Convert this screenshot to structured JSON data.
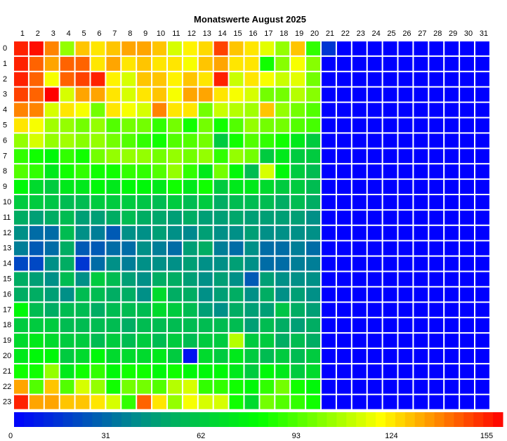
{
  "chart_data": {
    "type": "heatmap",
    "title": "Monatswerte August 2025",
    "x_labels": [
      "1",
      "2",
      "3",
      "4",
      "5",
      "6",
      "7",
      "8",
      "9",
      "10",
      "11",
      "12",
      "13",
      "14",
      "15",
      "16",
      "17",
      "18",
      "19",
      "20",
      "21",
      "22",
      "23",
      "24",
      "25",
      "26",
      "27",
      "28",
      "29",
      "30",
      "31"
    ],
    "y_labels": [
      "0",
      "1",
      "2",
      "3",
      "4",
      "5",
      "6",
      "7",
      "8",
      "9",
      "10",
      "11",
      "12",
      "13",
      "14",
      "15",
      "16",
      "17",
      "18",
      "19",
      "20",
      "21",
      "22",
      "23"
    ],
    "scale_min": 0,
    "scale_max": 155,
    "colorbar_ticks": [
      "0",
      "31",
      "62",
      "93",
      "124",
      "155"
    ],
    "color_stops": [
      "#0000ff",
      "#008c8c",
      "#00ff00",
      "#ffff00",
      "#ff0000"
    ],
    "values": [
      [
        150,
        153,
        135,
        100,
        125,
        120,
        125,
        130,
        130,
        125,
        110,
        118,
        122,
        145,
        125,
        120,
        112,
        100,
        125,
        85,
        15,
        0,
        0,
        0,
        0,
        0,
        0,
        0,
        0,
        0,
        0
      ],
      [
        150,
        140,
        130,
        140,
        140,
        120,
        130,
        120,
        125,
        120,
        120,
        115,
        125,
        130,
        120,
        120,
        80,
        98,
        115,
        98,
        0,
        0,
        0,
        0,
        0,
        0,
        0,
        0,
        0,
        0,
        0
      ],
      [
        150,
        140,
        115,
        140,
        145,
        150,
        118,
        110,
        125,
        125,
        118,
        125,
        120,
        150,
        108,
        120,
        115,
        108,
        112,
        95,
        0,
        0,
        0,
        0,
        0,
        0,
        0,
        0,
        0,
        0,
        0
      ],
      [
        145,
        140,
        155,
        110,
        130,
        130,
        120,
        110,
        120,
        125,
        115,
        130,
        130,
        120,
        115,
        110,
        95,
        95,
        105,
        98,
        0,
        0,
        0,
        0,
        0,
        0,
        0,
        0,
        0,
        0,
        0
      ],
      [
        135,
        135,
        110,
        120,
        115,
        95,
        120,
        115,
        110,
        135,
        120,
        120,
        95,
        108,
        105,
        102,
        125,
        100,
        95,
        90,
        0,
        0,
        0,
        0,
        0,
        0,
        0,
        0,
        0,
        0,
        0
      ],
      [
        120,
        115,
        102,
        100,
        95,
        100,
        90,
        95,
        95,
        85,
        95,
        80,
        95,
        80,
        90,
        100,
        95,
        95,
        90,
        88,
        0,
        0,
        0,
        0,
        0,
        0,
        0,
        0,
        0,
        0,
        0
      ],
      [
        100,
        110,
        100,
        102,
        98,
        100,
        95,
        90,
        85,
        80,
        90,
        90,
        95,
        60,
        80,
        90,
        85,
        80,
        70,
        60,
        0,
        0,
        0,
        0,
        0,
        0,
        0,
        0,
        0,
        0,
        0
      ],
      [
        85,
        80,
        75,
        85,
        80,
        95,
        100,
        100,
        100,
        95,
        100,
        95,
        100,
        85,
        100,
        95,
        60,
        70,
        60,
        60,
        0,
        0,
        0,
        0,
        0,
        0,
        0,
        0,
        0,
        0,
        0
      ],
      [
        90,
        85,
        70,
        80,
        85,
        80,
        80,
        85,
        85,
        90,
        100,
        85,
        70,
        95,
        75,
        55,
        110,
        75,
        60,
        55,
        0,
        0,
        0,
        0,
        0,
        0,
        0,
        0,
        0,
        0,
        0
      ],
      [
        75,
        65,
        60,
        70,
        70,
        75,
        70,
        75,
        75,
        70,
        80,
        70,
        80,
        60,
        70,
        70,
        65,
        60,
        60,
        55,
        0,
        0,
        0,
        0,
        0,
        0,
        0,
        0,
        0,
        0,
        0
      ],
      [
        60,
        60,
        58,
        55,
        55,
        60,
        60,
        60,
        58,
        55,
        60,
        55,
        60,
        50,
        55,
        55,
        55,
        50,
        55,
        50,
        0,
        0,
        0,
        0,
        0,
        0,
        0,
        0,
        0,
        0,
        0
      ],
      [
        50,
        45,
        50,
        55,
        45,
        45,
        50,
        55,
        50,
        48,
        45,
        50,
        45,
        45,
        48,
        45,
        45,
        45,
        45,
        40,
        0,
        0,
        0,
        0,
        0,
        0,
        0,
        0,
        0,
        0,
        0
      ],
      [
        40,
        30,
        30,
        55,
        40,
        35,
        25,
        40,
        40,
        45,
        40,
        38,
        45,
        40,
        40,
        45,
        40,
        40,
        40,
        40,
        0,
        0,
        0,
        0,
        0,
        0,
        0,
        0,
        0,
        0,
        0
      ],
      [
        35,
        25,
        30,
        50,
        25,
        25,
        30,
        30,
        40,
        35,
        30,
        45,
        50,
        35,
        30,
        40,
        30,
        30,
        35,
        30,
        0,
        0,
        0,
        0,
        0,
        0,
        0,
        0,
        0,
        0,
        0
      ],
      [
        20,
        20,
        40,
        50,
        15,
        30,
        40,
        35,
        40,
        40,
        40,
        45,
        40,
        40,
        45,
        40,
        30,
        30,
        35,
        35,
        0,
        0,
        0,
        0,
        0,
        0,
        0,
        0,
        0,
        0,
        0
      ],
      [
        50,
        45,
        40,
        55,
        40,
        60,
        55,
        45,
        40,
        50,
        50,
        45,
        40,
        45,
        40,
        25,
        45,
        40,
        40,
        40,
        0,
        0,
        0,
        0,
        0,
        0,
        0,
        0,
        0,
        0,
        0
      ],
      [
        50,
        50,
        45,
        40,
        55,
        55,
        50,
        50,
        40,
        65,
        50,
        50,
        40,
        45,
        50,
        40,
        50,
        40,
        45,
        40,
        0,
        0,
        0,
        0,
        0,
        0,
        0,
        0,
        0,
        0,
        0
      ],
      [
        75,
        55,
        50,
        55,
        55,
        50,
        55,
        55,
        55,
        65,
        60,
        55,
        45,
        40,
        50,
        45,
        45,
        58,
        50,
        45,
        0,
        0,
        0,
        0,
        0,
        0,
        0,
        0,
        0,
        0,
        0
      ],
      [
        60,
        60,
        60,
        55,
        55,
        55,
        55,
        50,
        55,
        55,
        55,
        55,
        55,
        55,
        55,
        45,
        55,
        50,
        45,
        50,
        0,
        0,
        0,
        0,
        0,
        0,
        0,
        0,
        0,
        0,
        0
      ],
      [
        65,
        70,
        65,
        60,
        60,
        55,
        60,
        55,
        60,
        55,
        60,
        55,
        60,
        60,
        105,
        60,
        60,
        50,
        55,
        50,
        0,
        0,
        0,
        0,
        0,
        0,
        0,
        0,
        0,
        0,
        0
      ],
      [
        70,
        75,
        75,
        60,
        65,
        75,
        65,
        65,
        65,
        70,
        60,
        5,
        65,
        60,
        70,
        60,
        55,
        60,
        55,
        60,
        0,
        0,
        0,
        0,
        0,
        0,
        0,
        0,
        0,
        0,
        0
      ],
      [
        80,
        80,
        100,
        70,
        80,
        85,
        75,
        80,
        80,
        75,
        80,
        75,
        75,
        75,
        70,
        60,
        75,
        70,
        60,
        65,
        0,
        0,
        0,
        0,
        0,
        0,
        0,
        0,
        0,
        0,
        0
      ],
      [
        130,
        90,
        125,
        90,
        110,
        100,
        80,
        95,
        95,
        90,
        105,
        110,
        85,
        85,
        80,
        75,
        85,
        95,
        80,
        75,
        0,
        0,
        0,
        0,
        0,
        0,
        0,
        0,
        0,
        0,
        0
      ],
      [
        150,
        130,
        130,
        125,
        125,
        120,
        110,
        85,
        140,
        120,
        100,
        115,
        110,
        110,
        80,
        65,
        95,
        90,
        85,
        80,
        0,
        0,
        0,
        0,
        0,
        0,
        0,
        0,
        0,
        0,
        0
      ]
    ]
  }
}
